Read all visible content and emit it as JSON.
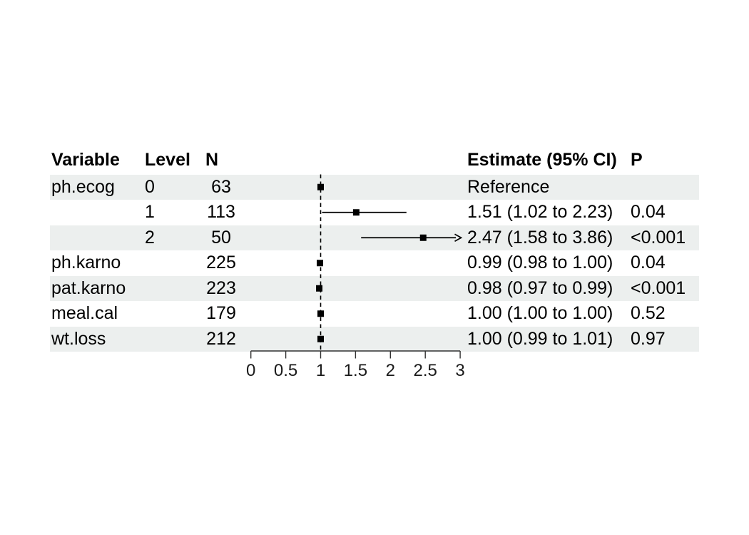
{
  "table": {
    "headers": {
      "variable": "Variable",
      "level": "Level",
      "n": "N",
      "estimate": "Estimate (95% CI)",
      "p": "P"
    },
    "rows": [
      {
        "variable": "ph.ecog",
        "level": "0",
        "n": "63",
        "estimate": "Reference",
        "p": "",
        "shaded": true
      },
      {
        "variable": "",
        "level": "1",
        "n": "113",
        "estimate": "1.51 (1.02 to 2.23)",
        "p": "0.04",
        "shaded": false
      },
      {
        "variable": "",
        "level": "2",
        "n": "50",
        "estimate": "2.47 (1.58 to 3.86)",
        "p": "<0.001",
        "shaded": true
      },
      {
        "variable": "ph.karno",
        "level": "",
        "n": "225",
        "estimate": "0.99 (0.98 to 1.00)",
        "p": "0.04",
        "shaded": false
      },
      {
        "variable": "pat.karno",
        "level": "",
        "n": "223",
        "estimate": "0.98 (0.97 to 0.99)",
        "p": "<0.001",
        "shaded": true
      },
      {
        "variable": "meal.cal",
        "level": "",
        "n": "179",
        "estimate": "1.00 (1.00 to 1.00)",
        "p": "0.52",
        "shaded": false
      },
      {
        "variable": "wt.loss",
        "level": "",
        "n": "212",
        "estimate": "1.00 (0.99 to 1.01)",
        "p": "0.97",
        "shaded": true
      }
    ]
  },
  "chart_data": {
    "type": "scatter",
    "subtype": "forest-plot",
    "xlim": [
      0,
      3
    ],
    "x_ticks": [
      0,
      0.5,
      1,
      1.5,
      2,
      2.5,
      3
    ],
    "x_tick_labels": [
      "0",
      "0.5",
      "1",
      "1.5",
      "2",
      "2.5",
      "3"
    ],
    "reference_line": 1,
    "grid": false,
    "legend": "none",
    "series": [
      {
        "label": "ph.ecog 0",
        "estimate": 1.0,
        "low": null,
        "high": null,
        "clipped_high": false
      },
      {
        "label": "ph.ecog 1",
        "estimate": 1.51,
        "low": 1.02,
        "high": 2.23,
        "clipped_high": false
      },
      {
        "label": "ph.ecog 2",
        "estimate": 2.47,
        "low": 1.58,
        "high": 3.86,
        "clipped_high": true
      },
      {
        "label": "ph.karno",
        "estimate": 0.99,
        "low": 0.98,
        "high": 1.0,
        "clipped_high": false
      },
      {
        "label": "pat.karno",
        "estimate": 0.98,
        "low": 0.97,
        "high": 0.99,
        "clipped_high": false
      },
      {
        "label": "meal.cal",
        "estimate": 1.0,
        "low": 1.0,
        "high": 1.0,
        "clipped_high": false
      },
      {
        "label": "wt.loss",
        "estimate": 1.0,
        "low": 0.99,
        "high": 1.01,
        "clipped_high": false
      }
    ]
  },
  "colors": {
    "stripe": "#ecefee",
    "text": "#000000",
    "marks": "#000000",
    "axis_line": "#333333",
    "axis_text": "#1a1a1a"
  }
}
